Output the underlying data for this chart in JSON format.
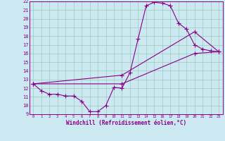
{
  "xlabel": "Windchill (Refroidissement éolien,°C)",
  "bg_color": "#cce8f0",
  "line_color": "#880088",
  "grid_color": "#99ccbb",
  "xlim": [
    -0.5,
    23.5
  ],
  "ylim": [
    9,
    22
  ],
  "xticks": [
    0,
    1,
    2,
    3,
    4,
    5,
    6,
    7,
    8,
    9,
    10,
    11,
    12,
    13,
    14,
    15,
    16,
    17,
    18,
    19,
    20,
    21,
    22,
    23
  ],
  "yticks": [
    9,
    10,
    11,
    12,
    13,
    14,
    15,
    16,
    17,
    18,
    19,
    20,
    21,
    22
  ],
  "line1_x": [
    0,
    1,
    2,
    3,
    4,
    5,
    6,
    7,
    8,
    9,
    10,
    11,
    12,
    13,
    14,
    15,
    16,
    17,
    18,
    19,
    20,
    21,
    22,
    23
  ],
  "line1_y": [
    12.5,
    11.7,
    11.3,
    11.3,
    11.1,
    11.1,
    10.5,
    9.3,
    9.3,
    10.0,
    12.1,
    12.0,
    13.8,
    17.7,
    21.5,
    21.9,
    21.8,
    21.5,
    19.5,
    18.8,
    17.0,
    16.5,
    16.3,
    16.2
  ],
  "line2_x": [
    0,
    11,
    20,
    23
  ],
  "line2_y": [
    12.5,
    13.5,
    18.5,
    16.2
  ],
  "line3_x": [
    0,
    11,
    20,
    23
  ],
  "line3_y": [
    12.5,
    12.5,
    16.0,
    16.2
  ]
}
